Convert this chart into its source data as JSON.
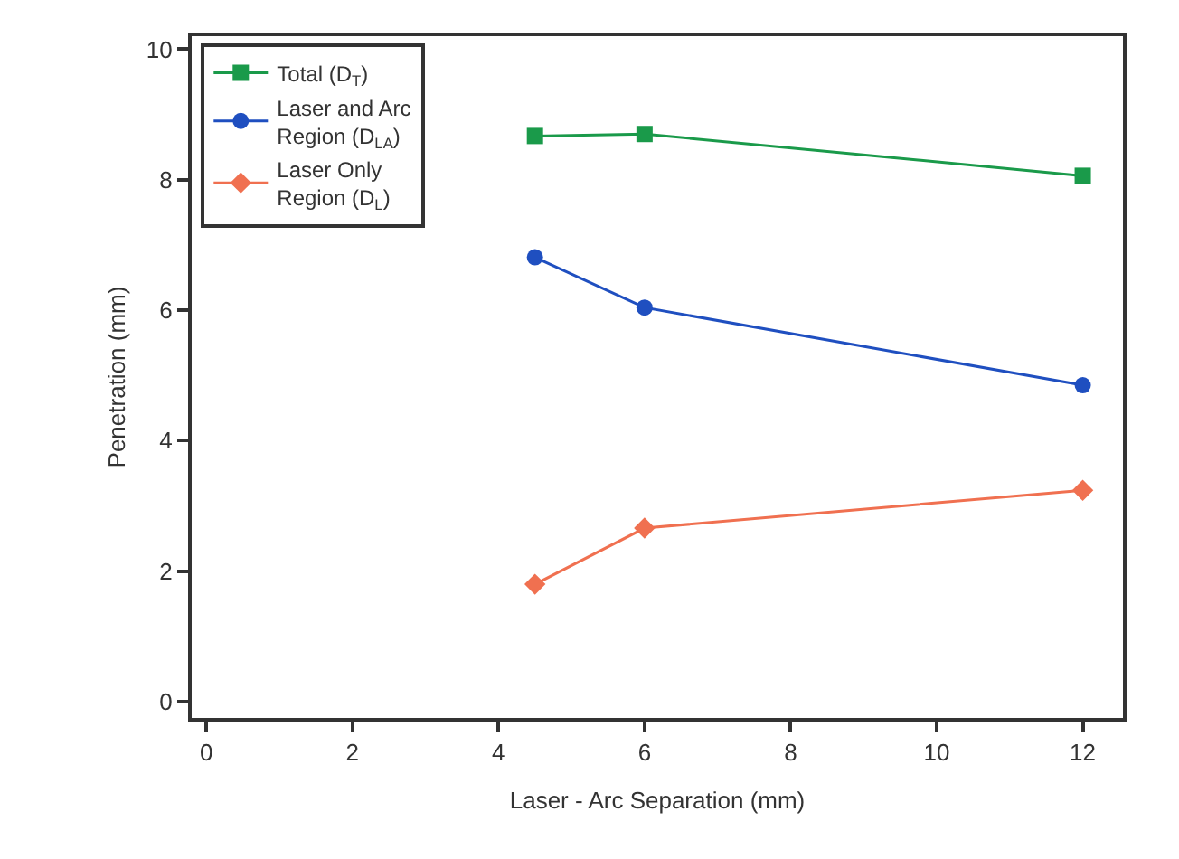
{
  "chart_data": {
    "type": "line",
    "xlabel": "Laser - Arc Separation (mm)",
    "ylabel": "Penetration (mm)",
    "x": [
      4.5,
      6,
      12
    ],
    "series": [
      {
        "name": "Total (D$_{T}$)",
        "color": "#1a9a4a",
        "values": [
          8.67,
          8.7,
          8.06
        ],
        "marker": "square"
      },
      {
        "name": "Laser and Arc Region (D$_{LA}$)",
        "color": "#1f4fc0",
        "values": [
          6.81,
          6.04,
          4.85
        ],
        "marker": "circle"
      },
      {
        "name": "Laser Only Region (D$_{L}$)",
        "color": "#f07050",
        "values": [
          1.8,
          2.66,
          3.24
        ],
        "marker": "diamond"
      }
    ],
    "xlim": [
      -0.2,
      12.55
    ],
    "xticks": [
      0,
      2,
      4,
      6,
      8,
      10,
      12
    ],
    "ylim": [
      -0.25,
      10.2
    ],
    "yticks": [
      0,
      2,
      4,
      6,
      8,
      10
    ],
    "grid": false,
    "legend": "top left",
    "line_style": "solid"
  }
}
